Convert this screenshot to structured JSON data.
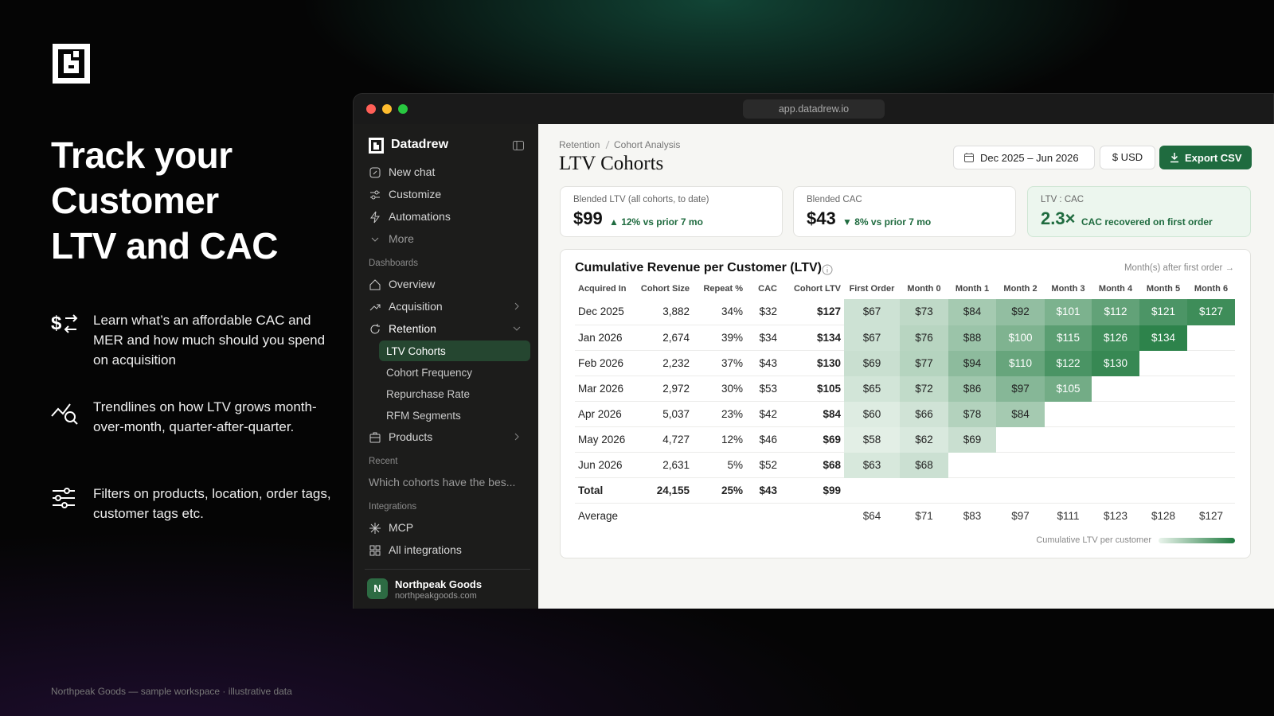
{
  "hero": {
    "title": [
      "Track your",
      "Customer",
      "LTV and CAC"
    ],
    "features": [
      "Learn what’s an affordable CAC and MER and how much should you spend on acquisition",
      "Trendlines on how LTV grows month-over-month, quarter-after-quarter.",
      "Filters on products, location, order tags, customer tags etc."
    ],
    "footnote": "Northpeak Goods — sample workspace · illustrative data"
  },
  "window": {
    "url": "app.datadrew.io"
  },
  "sidebar": {
    "brand": "Datadrew",
    "top": [
      "New chat",
      "Customize",
      "Automations",
      "More"
    ],
    "dashboards_label": "Dashboards",
    "dashboards": [
      "Overview",
      "Acquisition",
      "Retention"
    ],
    "retention_items": [
      "LTV Cohorts",
      "Cohort Frequency",
      "Repurchase Rate",
      "RFM Segments"
    ],
    "products": "Products",
    "recent_label": "Recent",
    "recent": [
      "Which cohorts have the bes..."
    ],
    "integrations_label": "Integrations",
    "integrations": [
      "MCP",
      "All integrations"
    ],
    "account": {
      "initial": "N",
      "name": "Northpeak Goods",
      "domain": "northpeakgoods.com"
    }
  },
  "main": {
    "breadcrumb": [
      "Retention",
      "Cohort Analysis"
    ],
    "title": "LTV Cohorts",
    "date_range": "Dec 2025 – Jun 2026",
    "currency": "$ USD",
    "export": "Export CSV",
    "kpis": [
      {
        "label": "Blended LTV (all cohorts, to date)",
        "value": "$99",
        "delta": "▲ 12% vs prior 7 mo"
      },
      {
        "label": "Blended CAC",
        "value": "$43",
        "delta": "▼ 8% vs prior 7 mo"
      },
      {
        "label": "LTV : CAC",
        "value": "2.3×",
        "delta": "CAC recovered on first order"
      }
    ],
    "table": {
      "title": "Cumulative Revenue per Customer (LTV)",
      "axis_note": "Month(s) after first order →",
      "columns": [
        "Acquired In",
        "Cohort Size",
        "Repeat %",
        "CAC",
        "Cohort LTV",
        "First Order",
        "Month 0",
        "Month 1",
        "Month 2",
        "Month 3",
        "Month 4",
        "Month 5",
        "Month 6"
      ],
      "rows": [
        [
          "Dec 2025",
          "3,882",
          "34%",
          "$32",
          "$127",
          "$67",
          "$73",
          "$84",
          "$92",
          "$101",
          "$112",
          "$121",
          "$127"
        ],
        [
          "Jan 2026",
          "2,674",
          "39%",
          "$34",
          "$134",
          "$67",
          "$76",
          "$88",
          "$100",
          "$115",
          "$126",
          "$134"
        ],
        [
          "Feb 2026",
          "2,232",
          "37%",
          "$43",
          "$130",
          "$69",
          "$77",
          "$94",
          "$110",
          "$122",
          "$130"
        ],
        [
          "Mar 2026",
          "2,972",
          "30%",
          "$53",
          "$105",
          "$65",
          "$72",
          "$86",
          "$97",
          "$105"
        ],
        [
          "Apr 2026",
          "5,037",
          "23%",
          "$42",
          "$84",
          "$60",
          "$66",
          "$78",
          "$84"
        ],
        [
          "May 2026",
          "4,727",
          "12%",
          "$46",
          "$69",
          "$58",
          "$62",
          "$69"
        ],
        [
          "Jun 2026",
          "2,631",
          "5%",
          "$52",
          "$68",
          "$63",
          "$68"
        ]
      ],
      "total": [
        "Total",
        "24,155",
        "25%",
        "$43",
        "$99"
      ],
      "average": {
        "label": "Average",
        "values": [
          "$64",
          "$71",
          "$83",
          "$97",
          "$111",
          "$123",
          "$128",
          "$127"
        ]
      },
      "legend": "Cumulative LTV per customer"
    }
  }
}
